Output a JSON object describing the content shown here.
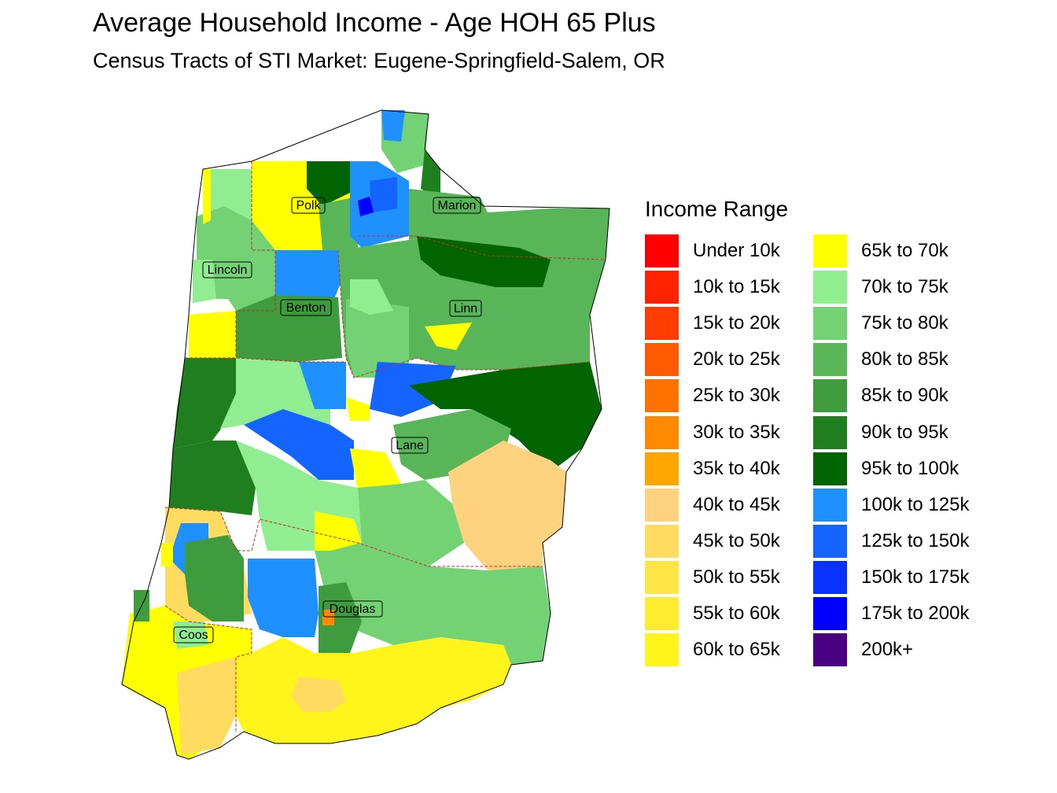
{
  "header": {
    "title": "Average Household Income - Age HOH 65 Plus",
    "subtitle": "Census Tracts of STI Market: Eugene-Springfield-Salem, OR"
  },
  "legend": {
    "title": "Income Range",
    "items": [
      {
        "label": "Under 10k",
        "color": "#ff0000"
      },
      {
        "label": "10k to 15k",
        "color": "#ff2200"
      },
      {
        "label": "15k to 20k",
        "color": "#ff3d00"
      },
      {
        "label": "20k to 25k",
        "color": "#ff5a00"
      },
      {
        "label": "25k to 30k",
        "color": "#ff7200"
      },
      {
        "label": "30k to 35k",
        "color": "#ff8a00"
      },
      {
        "label": "35k to 40k",
        "color": "#ffa500"
      },
      {
        "label": "40k to 45k",
        "color": "#ffd280"
      },
      {
        "label": "45k to 50k",
        "color": "#ffdc60"
      },
      {
        "label": "50k to 55k",
        "color": "#ffe445"
      },
      {
        "label": "55k to 60k",
        "color": "#ffec30"
      },
      {
        "label": "60k to 65k",
        "color": "#fff51a"
      },
      {
        "label": "65k to 70k",
        "color": "#ffff00"
      },
      {
        "label": "70k to 75k",
        "color": "#90ee90"
      },
      {
        "label": "75k to 80k",
        "color": "#73d273"
      },
      {
        "label": "80k to 85k",
        "color": "#58b658"
      },
      {
        "label": "85k to 90k",
        "color": "#3e9b3e"
      },
      {
        "label": "90k to 95k",
        "color": "#1f7f1f"
      },
      {
        "label": "95k to 100k",
        "color": "#006400"
      },
      {
        "label": "100k to 125k",
        "color": "#1e90ff"
      },
      {
        "label": "125k to 150k",
        "color": "#1464ff"
      },
      {
        "label": "150k to 175k",
        "color": "#0a32ff"
      },
      {
        "label": "175k to 200k",
        "color": "#0000ff"
      },
      {
        "label": "200k+",
        "color": "#4b0082"
      }
    ]
  },
  "counties": [
    {
      "name": "Polk"
    },
    {
      "name": "Marion"
    },
    {
      "name": "Lincoln"
    },
    {
      "name": "Benton"
    },
    {
      "name": "Linn"
    },
    {
      "name": "Lane"
    },
    {
      "name": "Douglas"
    },
    {
      "name": "Coos"
    }
  ]
}
